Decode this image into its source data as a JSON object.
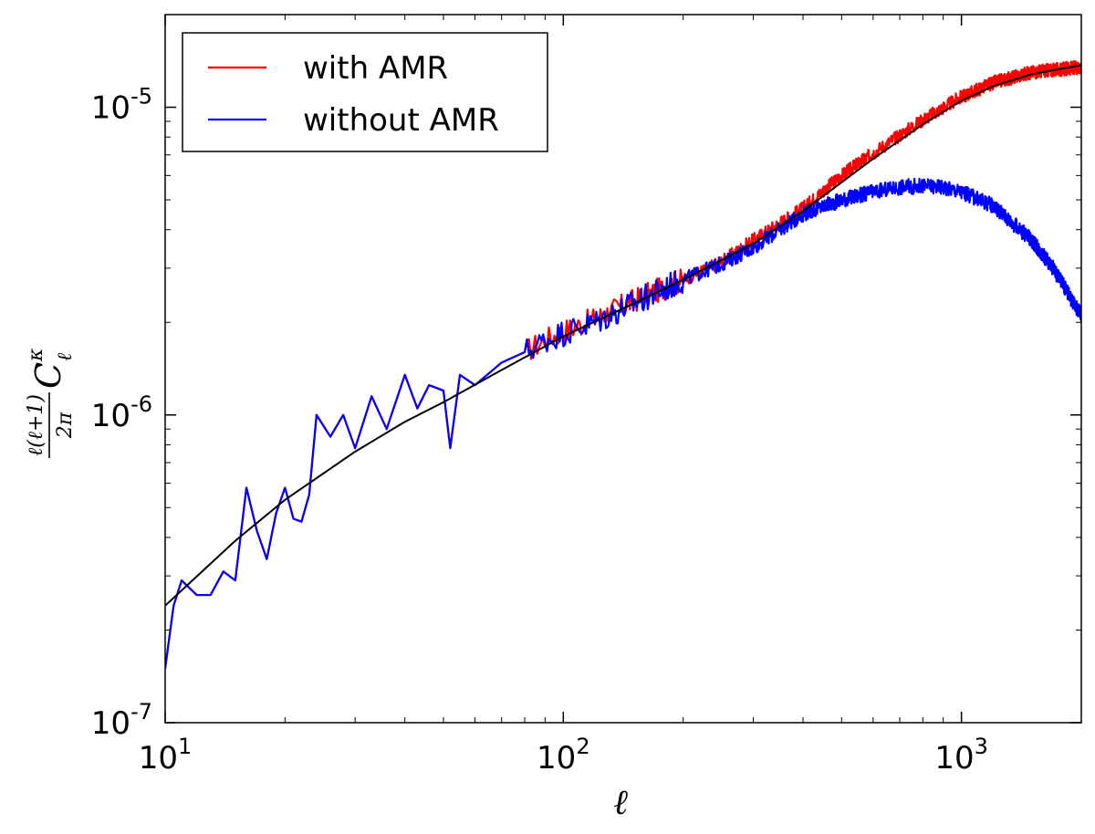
{
  "chart_data": {
    "type": "line",
    "xscale": "log",
    "yscale": "log",
    "xlim": [
      10,
      2000
    ],
    "ylim": [
      1e-07,
      2e-05
    ],
    "xlabel": "ℓ",
    "ylabel": {
      "numerator": "ℓ(ℓ+1)",
      "denominator": "2π",
      "symbol": "C",
      "subscript": "ℓ",
      "superscript": "κ"
    },
    "x_ticks": [
      {
        "value": 10,
        "base": "10",
        "exp": "1"
      },
      {
        "value": 100,
        "base": "10",
        "exp": "2"
      },
      {
        "value": 1000,
        "base": "10",
        "exp": "3"
      }
    ],
    "y_ticks": [
      {
        "value": 1e-07,
        "base": "10",
        "exp": "-7"
      },
      {
        "value": 1e-06,
        "base": "10",
        "exp": "-6"
      },
      {
        "value": 1e-05,
        "base": "10",
        "exp": "-5"
      }
    ],
    "grid": false,
    "legend_position": "top-left",
    "series": [
      {
        "name": "with AMR",
        "color": "#ff0000",
        "noise": 0.045,
        "points": [
          [
            10,
            1.5e-07
          ],
          [
            10.5,
            2.4e-07
          ],
          [
            11,
            2.9e-07
          ],
          [
            12,
            2.6e-07
          ],
          [
            13,
            2.6e-07
          ],
          [
            14,
            3.1e-07
          ],
          [
            15,
            2.9e-07
          ],
          [
            16,
            5.8e-07
          ],
          [
            17,
            4.2e-07
          ],
          [
            18,
            3.4e-07
          ],
          [
            19,
            4.8e-07
          ],
          [
            20,
            5.8e-07
          ],
          [
            21,
            4.6e-07
          ],
          [
            22,
            4.5e-07
          ],
          [
            23,
            5.5e-07
          ],
          [
            24,
            1e-06
          ],
          [
            26,
            8.5e-07
          ],
          [
            28,
            1e-06
          ],
          [
            30,
            7.8e-07
          ],
          [
            33,
            1.15e-06
          ],
          [
            36,
            9e-07
          ],
          [
            40,
            1.35e-06
          ],
          [
            43,
            1.05e-06
          ],
          [
            46,
            1.25e-06
          ],
          [
            50,
            1.2e-06
          ],
          [
            52,
            7.8e-07
          ],
          [
            55,
            1.35e-06
          ],
          [
            60,
            1.25e-06
          ],
          [
            70,
            1.48e-06
          ],
          [
            80,
            1.6e-06
          ],
          [
            90,
            1.75e-06
          ],
          [
            100,
            1.87e-06
          ],
          [
            120,
            2.05e-06
          ],
          [
            150,
            2.35e-06
          ],
          [
            200,
            2.75e-06
          ],
          [
            250,
            3.15e-06
          ],
          [
            300,
            3.7e-06
          ],
          [
            400,
            4.7e-06
          ],
          [
            500,
            6e-06
          ],
          [
            600,
            7.1e-06
          ],
          [
            800,
            9.1e-06
          ],
          [
            1000,
            1.08e-05
          ],
          [
            1200,
            1.2e-05
          ],
          [
            1500,
            1.3e-05
          ],
          [
            2000,
            1.35e-05
          ]
        ]
      },
      {
        "name": "without AMR",
        "color": "#0000ff",
        "noise": 0.05,
        "points": [
          [
            10,
            1.5e-07
          ],
          [
            10.5,
            2.4e-07
          ],
          [
            11,
            2.9e-07
          ],
          [
            12,
            2.6e-07
          ],
          [
            13,
            2.6e-07
          ],
          [
            14,
            3.1e-07
          ],
          [
            15,
            2.9e-07
          ],
          [
            16,
            5.8e-07
          ],
          [
            17,
            4.2e-07
          ],
          [
            18,
            3.4e-07
          ],
          [
            19,
            4.8e-07
          ],
          [
            20,
            5.8e-07
          ],
          [
            21,
            4.6e-07
          ],
          [
            22,
            4.5e-07
          ],
          [
            23,
            5.5e-07
          ],
          [
            24,
            1e-06
          ],
          [
            26,
            8.5e-07
          ],
          [
            28,
            1e-06
          ],
          [
            30,
            7.8e-07
          ],
          [
            33,
            1.15e-06
          ],
          [
            36,
            9e-07
          ],
          [
            40,
            1.35e-06
          ],
          [
            43,
            1.05e-06
          ],
          [
            46,
            1.25e-06
          ],
          [
            50,
            1.2e-06
          ],
          [
            52,
            7.8e-07
          ],
          [
            55,
            1.35e-06
          ],
          [
            60,
            1.25e-06
          ],
          [
            70,
            1.48e-06
          ],
          [
            80,
            1.6e-06
          ],
          [
            90,
            1.75e-06
          ],
          [
            100,
            1.85e-06
          ],
          [
            120,
            2e-06
          ],
          [
            150,
            2.3e-06
          ],
          [
            200,
            2.75e-06
          ],
          [
            250,
            3.1e-06
          ],
          [
            300,
            3.5e-06
          ],
          [
            350,
            4e-06
          ],
          [
            400,
            4.5e-06
          ],
          [
            500,
            5e-06
          ],
          [
            600,
            5.3e-06
          ],
          [
            700,
            5.5e-06
          ],
          [
            800,
            5.55e-06
          ],
          [
            900,
            5.5e-06
          ],
          [
            1000,
            5.3e-06
          ],
          [
            1200,
            4.8e-06
          ],
          [
            1500,
            3.7e-06
          ],
          [
            1700,
            3e-06
          ],
          [
            2000,
            2.1e-06
          ]
        ]
      },
      {
        "name": "",
        "color": "#000000",
        "noise": 0,
        "points": [
          [
            10,
            2.4e-07
          ],
          [
            15,
            3.9e-07
          ],
          [
            20,
            5.3e-07
          ],
          [
            30,
            7.6e-07
          ],
          [
            40,
            9.5e-07
          ],
          [
            50,
            1.1e-06
          ],
          [
            70,
            1.4e-06
          ],
          [
            100,
            1.8e-06
          ],
          [
            150,
            2.3e-06
          ],
          [
            200,
            2.75e-06
          ],
          [
            300,
            3.6e-06
          ],
          [
            400,
            4.6e-06
          ],
          [
            500,
            5.7e-06
          ],
          [
            600,
            6.8e-06
          ],
          [
            800,
            8.8e-06
          ],
          [
            1000,
            1.05e-05
          ],
          [
            1200,
            1.17e-05
          ],
          [
            1500,
            1.28e-05
          ],
          [
            2000,
            1.37e-05
          ]
        ]
      }
    ]
  }
}
